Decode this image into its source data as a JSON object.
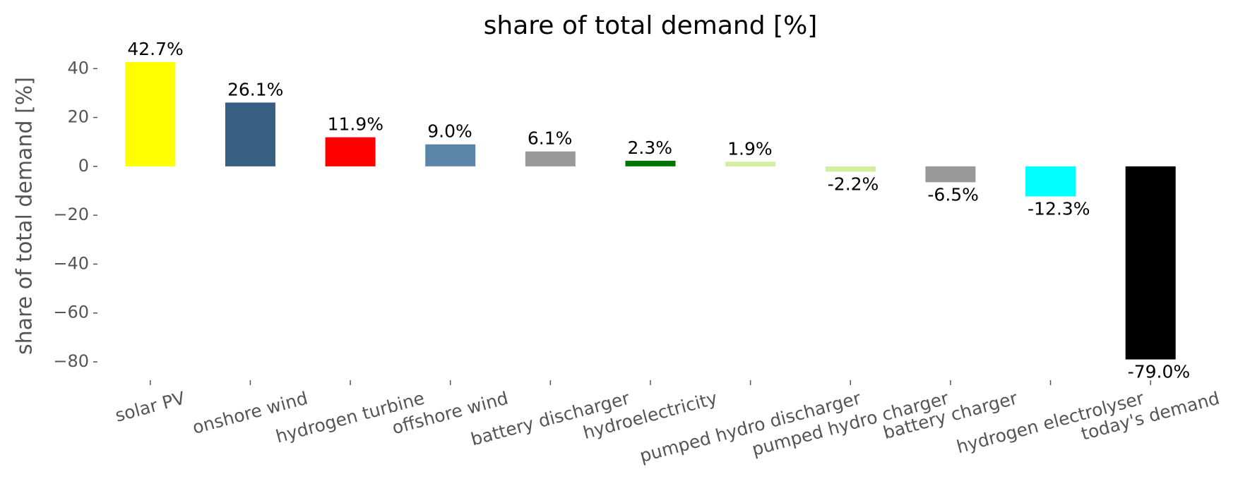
{
  "chart_data": {
    "type": "bar",
    "title": "share of total demand [%]",
    "y_label": "share of total demand [%]",
    "categories": [
      "solar PV",
      "onshore wind",
      "hydrogen turbine",
      "offshore wind",
      "battery discharger",
      "hydroelectricity",
      "pumped hydro discharger",
      "pumped hydro charger",
      "battery charger",
      "hydrogen electrolyser",
      "today's demand"
    ],
    "values": [
      42.7,
      26.1,
      11.9,
      9.0,
      6.1,
      2.3,
      1.9,
      -2.2,
      -6.5,
      -12.3,
      -79.0
    ],
    "value_labels": [
      "42.7%",
      "26.1%",
      "11.9%",
      "9.0%",
      "6.1%",
      "2.3%",
      "1.9%",
      "-2.2%",
      "-6.5%",
      "-12.3%",
      "-79.0%"
    ],
    "colors": [
      "#ffff00",
      "#365f82",
      "#ff0000",
      "#5a84a8",
      "#999999",
      "#007300",
      "#d1ef9f",
      "#d1ef9f",
      "#999999",
      "#00ffff",
      "#000000"
    ],
    "ylim": [
      -87.5,
      47
    ],
    "yticks": [
      {
        "value": -80,
        "label": "−80"
      },
      {
        "value": -60,
        "label": "−60"
      },
      {
        "value": -40,
        "label": "−40"
      },
      {
        "value": -20,
        "label": "−20"
      },
      0,
      20,
      40
    ]
  }
}
